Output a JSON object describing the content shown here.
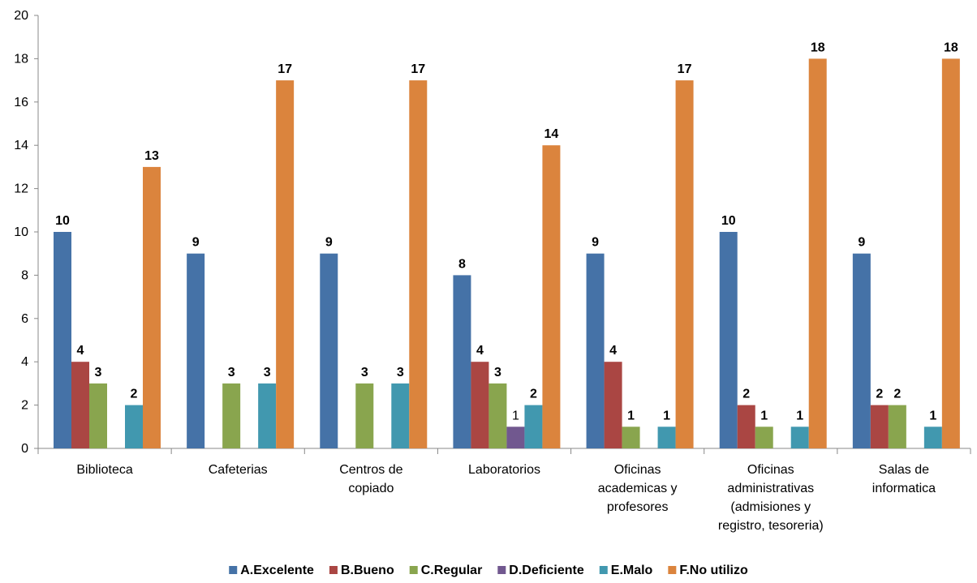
{
  "chart_data": {
    "type": "bar",
    "categories": [
      [
        "Biblioteca"
      ],
      [
        "Cafeterias"
      ],
      [
        "Centros de",
        "copiado"
      ],
      [
        "Laboratorios"
      ],
      [
        "Oficinas",
        "academicas y",
        "profesores"
      ],
      [
        "Oficinas",
        "administrativas",
        "(admisiones y",
        "registro, tesoreria)"
      ],
      [
        "Salas de",
        "informatica"
      ]
    ],
    "series": [
      {
        "name": "A.Excelente",
        "color": "#4572A7",
        "values": [
          10,
          9,
          9,
          8,
          9,
          10,
          9
        ],
        "labels": [
          "10",
          "9",
          "9",
          "8",
          "9",
          "10",
          "9"
        ],
        "bold": true
      },
      {
        "name": "B.Bueno",
        "color": "#AA4643",
        "values": [
          4,
          0,
          0,
          4,
          4,
          2,
          2
        ],
        "labels": [
          "4",
          "",
          "",
          "4",
          "4",
          "2",
          "2"
        ],
        "bold": true
      },
      {
        "name": "C.Regular",
        "color": "#89A54E",
        "values": [
          3,
          3,
          3,
          3,
          1,
          1,
          2
        ],
        "labels": [
          "3",
          "3",
          "3",
          "3",
          "1",
          "1",
          "2"
        ],
        "bold": true
      },
      {
        "name": "D.Deficiente",
        "color": "#71588F",
        "values": [
          0,
          0,
          0,
          1,
          0,
          0,
          0
        ],
        "labels": [
          "",
          "",
          "",
          "1",
          "",
          "",
          ""
        ],
        "bold": false
      },
      {
        "name": "E.Malo",
        "color": "#4198AF",
        "values": [
          2,
          3,
          3,
          2,
          1,
          1,
          1
        ],
        "labels": [
          "2",
          "3",
          "3",
          "2",
          "1",
          "1",
          "1"
        ],
        "bold": true
      },
      {
        "name": "F.No utilizo",
        "color": "#DB843D",
        "values": [
          13,
          17,
          17,
          14,
          17,
          18,
          18
        ],
        "labels": [
          "13",
          "17",
          "17",
          "14",
          "17",
          "18",
          "18"
        ],
        "bold": true
      }
    ],
    "yticks": [
      "0",
      "2",
      "4",
      "6",
      "8",
      "10",
      "12",
      "14",
      "16",
      "18",
      "20"
    ],
    "ylim": [
      0,
      20
    ],
    "grid": false,
    "legend": "bottom"
  }
}
